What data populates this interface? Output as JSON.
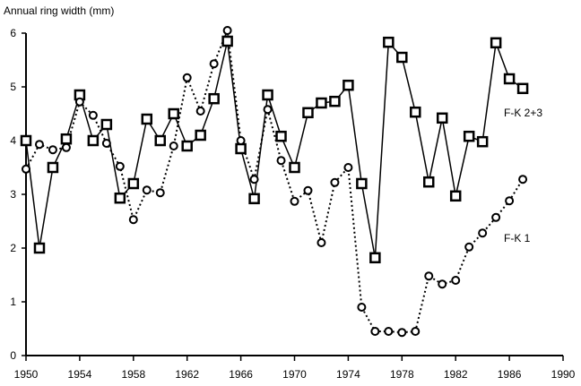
{
  "chart_data": {
    "type": "line",
    "title": "",
    "ylabel": "Annual ring width (mm)",
    "xlabel": "",
    "xlim": [
      1950,
      1990
    ],
    "ylim": [
      0,
      6
    ],
    "xticks": [
      1950,
      1954,
      1958,
      1962,
      1966,
      1970,
      1974,
      1978,
      1982,
      1986,
      1990
    ],
    "yticks": [
      0,
      1,
      2,
      3,
      4,
      5,
      6
    ],
    "grid": false,
    "x": [
      1950,
      1951,
      1952,
      1953,
      1954,
      1955,
      1956,
      1957,
      1958,
      1959,
      1960,
      1961,
      1962,
      1963,
      1964,
      1965,
      1966,
      1967,
      1968,
      1969,
      1970,
      1971,
      1972,
      1973,
      1974,
      1975,
      1976,
      1977,
      1978,
      1979,
      1980,
      1981,
      1982,
      1983,
      1984,
      1985,
      1986,
      1987
    ],
    "series": [
      {
        "name": "F-K 2+3",
        "marker": "square",
        "line": "solid",
        "values": [
          4.0,
          2.0,
          3.5,
          4.03,
          4.85,
          4.0,
          4.3,
          2.93,
          3.2,
          4.4,
          4.0,
          4.5,
          3.9,
          4.1,
          4.78,
          5.85,
          3.85,
          2.92,
          4.85,
          4.08,
          3.5,
          4.52,
          4.7,
          4.73,
          5.03,
          3.2,
          1.82,
          5.83,
          5.55,
          4.53,
          3.23,
          4.42,
          2.97,
          4.08,
          3.98,
          5.82,
          5.15,
          4.97
        ]
      },
      {
        "name": "F-K 1",
        "marker": "circle",
        "line": "dotted",
        "values": [
          3.47,
          3.93,
          3.83,
          3.87,
          4.72,
          4.47,
          3.95,
          3.52,
          2.53,
          3.08,
          3.03,
          3.9,
          5.17,
          4.55,
          5.43,
          6.05,
          4.0,
          3.28,
          4.58,
          3.63,
          2.87,
          3.07,
          2.1,
          3.22,
          3.5,
          0.9,
          0.45,
          0.45,
          0.43,
          0.45,
          1.48,
          1.33,
          1.4,
          2.02,
          2.28,
          2.57,
          2.88,
          3.28
        ]
      }
    ],
    "legend": "inline labels at right end of series"
  }
}
